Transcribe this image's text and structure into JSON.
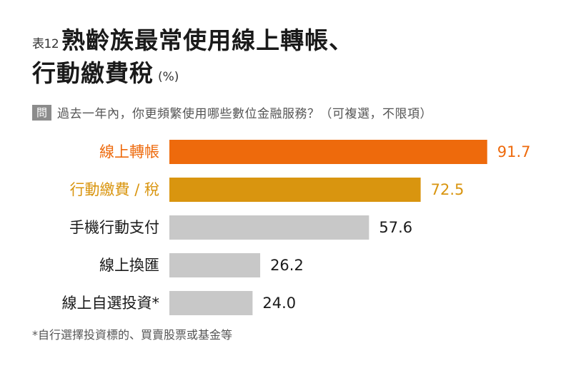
{
  "header": {
    "table_number": "表12",
    "title_line1": "熟齡族最常使用線上轉帳、",
    "title_line2": "行動繳費稅",
    "unit": "(%)"
  },
  "question": {
    "badge": "問",
    "text": "過去一年內，你更頻繁使用哪些數位金融服務？（可複選，不限項）"
  },
  "footnote": "*自行選擇投資標的、買賣股票或基金等",
  "colors": {
    "highlight1": "#ee6a0c",
    "highlight2": "#d9950f",
    "default_bar": "#c8c8c8",
    "default_label": "#1a1a1a"
  },
  "chart_data": {
    "type": "bar",
    "orientation": "horizontal",
    "categories": [
      "線上轉帳",
      "行動繳費 / 稅",
      "手機行動支付",
      "線上換匯",
      "線上自選投資*"
    ],
    "values": [
      91.7,
      72.5,
      57.6,
      26.2,
      24.0
    ],
    "value_labels": [
      "91.7",
      "72.5",
      "57.6",
      "26.2",
      "24.0"
    ],
    "bar_colors": [
      "#ee6a0c",
      "#d9950f",
      "#c8c8c8",
      "#c8c8c8",
      "#c8c8c8"
    ],
    "label_colors": [
      "#ee6a0c",
      "#d9950f",
      "#1a1a1a",
      "#1a1a1a",
      "#1a1a1a"
    ],
    "xlim": [
      0,
      100
    ],
    "grid": false,
    "legend": "none"
  }
}
